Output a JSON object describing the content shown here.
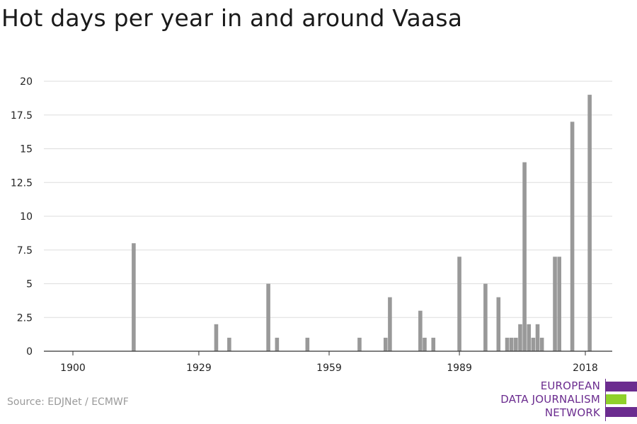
{
  "title": "Hot days per year in and around Vaasa",
  "source": "Source: EDJNet / ECMWF",
  "logo": {
    "lines": [
      "EUROPEAN",
      "DATA JOURNALISM",
      "NETWORK"
    ],
    "colors": [
      "#6b2c8f",
      "#8fd12a",
      "#6b2c8f"
    ]
  },
  "chart_data": {
    "type": "bar",
    "title": "Hot days per year in and around Vaasa",
    "xlabel": "",
    "ylabel": "",
    "xlim": [
      1900,
      2018
    ],
    "ylim": [
      0,
      20
    ],
    "x_ticks": [
      1900,
      1929,
      1959,
      1989,
      2018
    ],
    "y_ticks": [
      0,
      2.5,
      5,
      7.5,
      10,
      12.5,
      15,
      17.5,
      20
    ],
    "grid": true,
    "bar_color": "#999999",
    "x": [
      1914,
      1933,
      1936,
      1945,
      1947,
      1954,
      1966,
      1972,
      1973,
      1980,
      1981,
      1983,
      1989,
      1995,
      1998,
      2000,
      2001,
      2002,
      2003,
      2004,
      2005,
      2006,
      2007,
      2008,
      2011,
      2012,
      2015,
      2019
    ],
    "values": [
      8,
      2,
      1,
      5,
      1,
      1,
      1,
      1,
      4,
      3,
      1,
      1,
      7,
      5,
      4,
      1,
      1,
      1,
      2,
      14,
      2,
      1,
      2,
      1,
      7,
      7,
      17,
      19
    ]
  }
}
